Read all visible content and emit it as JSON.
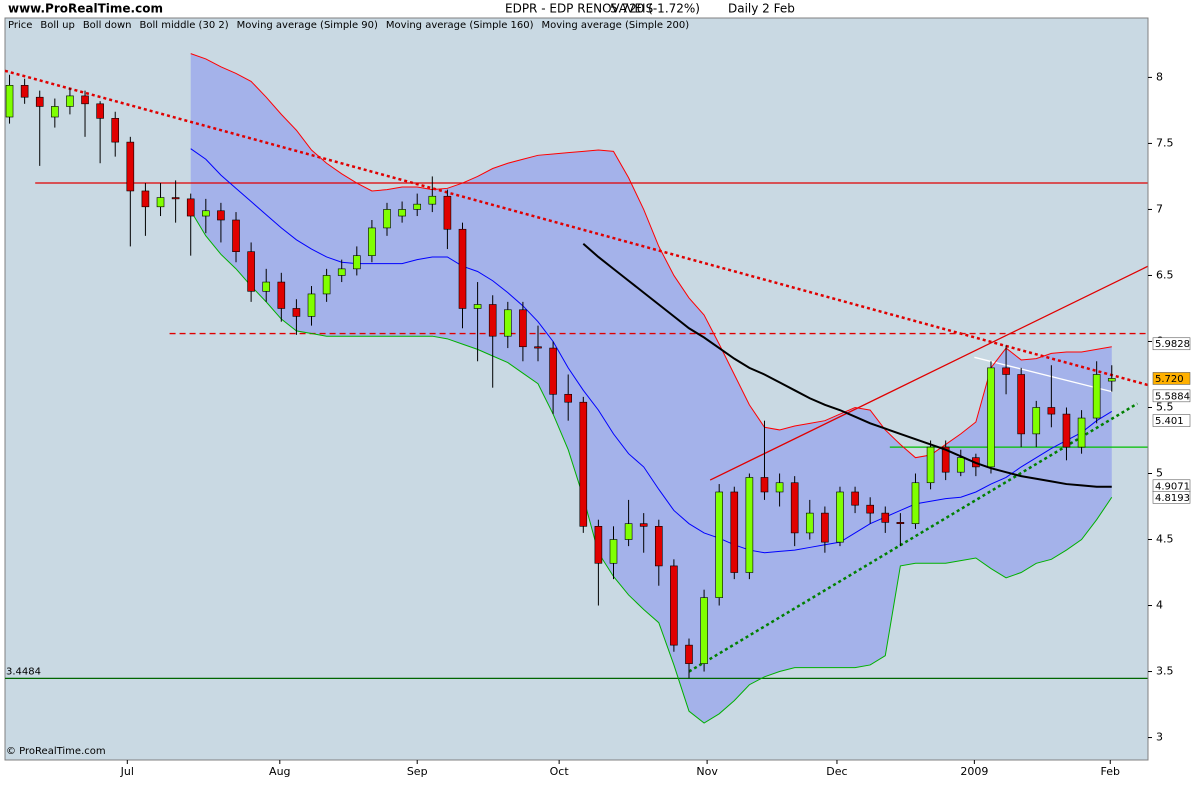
{
  "chart_data": {
    "type": "candlestick",
    "site": "www.ProRealTime.com",
    "title": "EDPR - EDP RENOVAVEIS",
    "quote": "5.720 (-1.72%)",
    "interval": "Daily  2 Feb",
    "footer": "© ProRealTime.com",
    "ylim": [
      2.83,
      8.45
    ],
    "yticks": [
      3,
      3.5,
      4,
      4.5,
      5,
      5.5,
      6,
      6.5,
      7,
      7.5,
      8
    ],
    "xlim": [
      -0.3,
      75.4
    ],
    "xticks": [
      {
        "value": 7.8,
        "label": "Jul"
      },
      {
        "value": 17.9,
        "label": "Aug"
      },
      {
        "value": 27.0,
        "label": "Sep"
      },
      {
        "value": 36.4,
        "label": "Oct"
      },
      {
        "value": 46.2,
        "label": "Nov"
      },
      {
        "value": 54.8,
        "label": "Dec"
      },
      {
        "value": 63.9,
        "label": "2009"
      },
      {
        "value": 72.9,
        "label": "Feb"
      }
    ],
    "candles": {
      "name": "Price",
      "up_color": "#80ff00",
      "down_color": "#e00000",
      "open": [
        7.7,
        7.94,
        7.85,
        7.7,
        7.78,
        7.86,
        7.8,
        7.69,
        7.51,
        7.14,
        7.02,
        7.09,
        7.08,
        6.95,
        6.99,
        6.92,
        6.68,
        6.38,
        6.45,
        6.25,
        6.19,
        6.36,
        6.5,
        6.55,
        6.65,
        6.86,
        6.95,
        7.0,
        7.04,
        7.1,
        6.85,
        6.25,
        6.28,
        6.04,
        6.24,
        5.96,
        5.95,
        5.6,
        5.54,
        4.6,
        4.32,
        4.5,
        4.62,
        4.6,
        4.3,
        3.7,
        3.56,
        4.06,
        4.86,
        4.25,
        4.97,
        4.86,
        4.93,
        4.55,
        4.7,
        4.48,
        4.86,
        4.76,
        4.7,
        4.63,
        4.62,
        4.93,
        5.2,
        5.01,
        5.12,
        5.05,
        5.8,
        5.75,
        5.3,
        5.5,
        5.45,
        5.2,
        5.42,
        5.7
      ],
      "high": [
        8.02,
        7.99,
        7.9,
        7.84,
        7.92,
        7.9,
        7.82,
        7.74,
        7.55,
        7.2,
        7.2,
        7.22,
        7.12,
        7.08,
        7.05,
        6.98,
        6.75,
        6.55,
        6.52,
        6.32,
        6.42,
        6.55,
        6.62,
        6.72,
        6.92,
        7.05,
        7.06,
        7.12,
        7.25,
        7.15,
        6.9,
        6.45,
        6.35,
        6.3,
        6.3,
        6.12,
        6.0,
        5.75,
        5.58,
        4.65,
        4.6,
        4.8,
        4.7,
        4.65,
        4.35,
        3.75,
        4.12,
        4.92,
        4.9,
        5.0,
        5.4,
        5.0,
        4.98,
        4.8,
        4.75,
        4.9,
        4.9,
        4.82,
        4.75,
        4.7,
        5.0,
        5.25,
        5.25,
        5.18,
        5.15,
        5.85,
        5.97,
        5.8,
        5.55,
        5.82,
        5.5,
        5.48,
        5.85,
        5.82
      ],
      "low": [
        7.65,
        7.8,
        7.33,
        7.62,
        7.72,
        7.55,
        7.35,
        7.4,
        6.72,
        6.8,
        6.95,
        6.9,
        6.65,
        6.82,
        6.75,
        6.6,
        6.3,
        6.3,
        6.15,
        6.05,
        6.12,
        6.3,
        6.45,
        6.5,
        6.6,
        6.8,
        6.9,
        6.95,
        6.98,
        6.7,
        6.1,
        5.85,
        5.65,
        5.95,
        5.85,
        5.85,
        5.45,
        5.4,
        4.55,
        4.0,
        4.2,
        4.45,
        4.4,
        4.15,
        3.65,
        3.45,
        3.5,
        4.0,
        4.2,
        4.2,
        4.8,
        4.75,
        4.45,
        4.5,
        4.4,
        4.45,
        4.7,
        4.62,
        4.55,
        4.45,
        4.58,
        4.88,
        4.95,
        4.98,
        4.98,
        5.0,
        5.6,
        5.2,
        5.2,
        5.35,
        5.1,
        5.15,
        5.38,
        5.62
      ],
      "close": [
        7.94,
        7.85,
        7.78,
        7.78,
        7.86,
        7.8,
        7.69,
        7.51,
        7.14,
        7.02,
        7.09,
        7.08,
        6.95,
        6.99,
        6.92,
        6.68,
        6.38,
        6.45,
        6.25,
        6.19,
        6.36,
        6.5,
        6.55,
        6.65,
        6.86,
        7.0,
        7.0,
        7.04,
        7.1,
        6.85,
        6.25,
        6.28,
        6.04,
        6.24,
        5.96,
        5.95,
        5.6,
        5.54,
        4.6,
        4.32,
        4.5,
        4.62,
        4.6,
        4.3,
        3.7,
        3.56,
        4.06,
        4.86,
        4.25,
        4.97,
        4.86,
        4.93,
        4.55,
        4.7,
        4.48,
        4.86,
        4.76,
        4.7,
        4.63,
        4.62,
        4.93,
        5.2,
        5.01,
        5.12,
        5.05,
        5.8,
        5.75,
        5.3,
        5.5,
        5.45,
        5.2,
        5.42,
        5.75,
        5.72
      ]
    },
    "band_fill": "#a4b2ea",
    "series": [
      {
        "name": "Boll up",
        "color": "#ff0000",
        "values": [
          null,
          null,
          null,
          null,
          null,
          null,
          null,
          null,
          null,
          null,
          null,
          null,
          8.18,
          8.14,
          8.08,
          8.03,
          7.97,
          7.85,
          7.72,
          7.6,
          7.45,
          7.35,
          7.27,
          7.2,
          7.14,
          7.15,
          7.17,
          7.17,
          7.15,
          7.16,
          7.2,
          7.25,
          7.31,
          7.35,
          7.38,
          7.41,
          7.42,
          7.43,
          7.44,
          7.45,
          7.44,
          7.24,
          7.0,
          6.72,
          6.5,
          6.33,
          6.2,
          5.98,
          5.75,
          5.52,
          5.35,
          5.33,
          5.36,
          5.38,
          5.4,
          5.45,
          5.5,
          5.48,
          5.33,
          5.22,
          5.12,
          5.14,
          5.22,
          5.3,
          5.39,
          5.8,
          5.95,
          5.86,
          5.87,
          5.91,
          5.92,
          5.92,
          5.94,
          5.96
        ]
      },
      {
        "name": "Boll down",
        "color": "#00b000",
        "values": [
          null,
          null,
          null,
          null,
          null,
          null,
          null,
          null,
          null,
          null,
          null,
          null,
          6.99,
          6.8,
          6.66,
          6.55,
          6.42,
          6.3,
          6.17,
          6.08,
          6.06,
          6.04,
          6.04,
          6.04,
          6.04,
          6.04,
          6.04,
          6.04,
          6.04,
          6.02,
          5.98,
          5.94,
          5.89,
          5.84,
          5.76,
          5.68,
          5.45,
          5.18,
          4.82,
          4.4,
          4.22,
          4.08,
          3.97,
          3.87,
          3.55,
          3.2,
          3.11,
          3.18,
          3.28,
          3.4,
          3.46,
          3.5,
          3.53,
          3.53,
          3.53,
          3.53,
          3.53,
          3.55,
          3.62,
          4.3,
          4.32,
          4.32,
          4.32,
          4.34,
          4.36,
          4.28,
          4.21,
          4.25,
          4.32,
          4.35,
          4.42,
          4.5,
          4.65,
          4.82
        ]
      },
      {
        "name": "Boll middle (30 2)",
        "color": "#0000ff",
        "values": [
          null,
          null,
          null,
          null,
          null,
          null,
          null,
          null,
          null,
          null,
          null,
          null,
          7.46,
          7.38,
          7.26,
          7.16,
          7.06,
          6.96,
          6.86,
          6.77,
          6.7,
          6.64,
          6.6,
          6.59,
          6.59,
          6.59,
          6.59,
          6.62,
          6.64,
          6.64,
          6.57,
          6.53,
          6.46,
          6.37,
          6.27,
          6.15,
          6.0,
          5.8,
          5.63,
          5.48,
          5.3,
          5.15,
          5.05,
          4.88,
          4.72,
          4.62,
          4.55,
          4.51,
          4.46,
          4.42,
          4.4,
          4.41,
          4.42,
          4.44,
          4.46,
          4.48,
          4.55,
          4.62,
          4.67,
          4.72,
          4.77,
          4.79,
          4.81,
          4.82,
          4.86,
          4.92,
          4.97,
          5.05,
          5.12,
          5.19,
          5.25,
          5.31,
          5.4,
          5.47
        ]
      },
      {
        "name": "Moving average (Simple 90)",
        "color": "#000000",
        "values": [
          null,
          null,
          null,
          null,
          null,
          null,
          null,
          null,
          null,
          null,
          null,
          null,
          null,
          null,
          null,
          null,
          null,
          null,
          null,
          null,
          null,
          null,
          null,
          null,
          null,
          null,
          null,
          null,
          null,
          null,
          null,
          null,
          null,
          null,
          null,
          null,
          null,
          null,
          6.74,
          6.64,
          6.55,
          6.46,
          6.37,
          6.28,
          6.19,
          6.1,
          6.03,
          5.95,
          5.87,
          5.8,
          5.75,
          5.69,
          5.63,
          5.57,
          5.52,
          5.48,
          5.43,
          5.38,
          5.34,
          5.3,
          5.26,
          5.22,
          5.18,
          5.13,
          5.08,
          5.04,
          5.01,
          4.98,
          4.96,
          4.94,
          4.92,
          4.91,
          4.9,
          4.9
        ]
      },
      {
        "name": "Moving average (Simple 160)",
        "color": "#ffffff"
      },
      {
        "name": "Moving average (Simple 200)",
        "color": "#ffff00"
      }
    ],
    "trendlines": [
      {
        "color": "#e00000",
        "dash": "dot",
        "from": [
          -0.3,
          8.05
        ],
        "to": [
          75.4,
          5.67
        ]
      },
      {
        "color": "#e00000",
        "dash": "solid",
        "from": [
          1.7,
          7.2
        ],
        "to": [
          75.4,
          7.2
        ]
      },
      {
        "color": "#e00000",
        "dash": "dash",
        "from": [
          10.6,
          6.06
        ],
        "to": [
          75.4,
          6.06
        ]
      },
      {
        "color": "#e00000",
        "dash": "solid",
        "from": [
          46.4,
          4.95
        ],
        "to": [
          75.4,
          6.57
        ]
      },
      {
        "color": "#006600",
        "dash": "solid",
        "from": [
          -0.3,
          3.4484
        ],
        "to": [
          75.4,
          3.4484
        ],
        "labeled": true
      },
      {
        "color": "#008000",
        "dash": "dot",
        "from": [
          45.0,
          3.5
        ],
        "to": [
          74.7,
          5.53
        ]
      },
      {
        "color": "#ffffff",
        "dash": "solid",
        "from": [
          63.9,
          5.88
        ],
        "to": [
          73.0,
          5.62
        ]
      },
      {
        "color": "#00c000",
        "dash": "solid",
        "from": [
          58.3,
          5.2
        ],
        "to": [
          75.4,
          5.2
        ]
      }
    ],
    "price_tags": [
      {
        "value": 5.9828,
        "color": "#ff0000",
        "bg": "#ffffff"
      },
      {
        "value": 5.72,
        "label": "5.720",
        "color": "#000000",
        "bg": "#ffb000"
      },
      {
        "value": 5.5884,
        "color": "#c8c8c8",
        "bg": "#ffffff"
      },
      {
        "value": 5.401,
        "color": "#0000ff",
        "bg": "#ffffff"
      },
      {
        "value": 4.9071,
        "color": "#000000",
        "bg": "#ffffff"
      },
      {
        "value": 4.8193,
        "color": "#00a000",
        "bg": "#ffffff"
      }
    ]
  }
}
